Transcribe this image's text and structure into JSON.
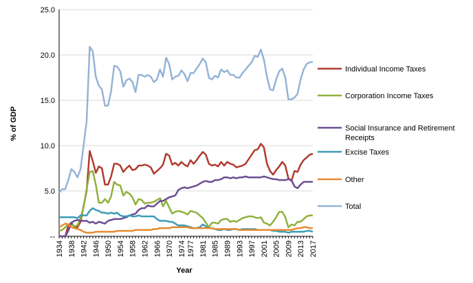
{
  "chart_data": {
    "type": "line",
    "xlabel": "Year",
    "ylabel": "% of GDP",
    "x_tick_labels": [
      "1934",
      "1938",
      "1942",
      "1946",
      "1950",
      "1954",
      "1958",
      "1962",
      "1966",
      "1970",
      "1974",
      "1977",
      "1981",
      "1985",
      "1989",
      "1993",
      "1997",
      "2001",
      "2005",
      "2009",
      "2013",
      "2017"
    ],
    "y_tick_labels": [
      "--",
      "5.0",
      "10.0",
      "15.0",
      "20.0",
      "25.0"
    ],
    "ylim": [
      0,
      25
    ],
    "grid": "horizontal",
    "legend_position": "right",
    "x": [
      1934,
      1935,
      1936,
      1937,
      1938,
      1939,
      1940,
      1941,
      1942,
      1943,
      1944,
      1945,
      1946,
      1947,
      1948,
      1949,
      1950,
      1951,
      1952,
      1953,
      1954,
      1955,
      1956,
      1957,
      1958,
      1959,
      1960,
      1961,
      1962,
      1963,
      1964,
      1965,
      1966,
      1967,
      1968,
      1969,
      1970,
      1971,
      1972,
      1973,
      1974,
      1975,
      1976,
      1977,
      1978,
      1979,
      1980,
      1981,
      1982,
      1983,
      1984,
      1985,
      1986,
      1987,
      1988,
      1989,
      1990,
      1991,
      1992,
      1993,
      1994,
      1995,
      1996,
      1997,
      1998,
      1999,
      2000,
      2001,
      2002,
      2003,
      2004,
      2005,
      2006,
      2007,
      2008,
      2009,
      2010,
      2011,
      2012,
      2013,
      2014,
      2015,
      2016,
      2017
    ],
    "series": [
      {
        "name": "Individual Income Taxes",
        "color": "#b03a2e",
        "values": [
          0.0,
          0.0,
          0.0,
          1.2,
          1.5,
          1.0,
          1.0,
          1.6,
          3.3,
          5.0,
          9.4,
          8.3,
          7.0,
          7.7,
          7.5,
          5.7,
          5.7,
          6.6,
          8.0,
          8.0,
          7.8,
          7.1,
          7.5,
          7.8,
          7.3,
          7.4,
          7.8,
          7.8,
          7.9,
          7.8,
          7.6,
          6.9,
          7.2,
          7.5,
          7.9,
          9.1,
          8.9,
          7.9,
          8.1,
          7.8,
          8.2,
          7.9,
          7.7,
          8.4,
          8.0,
          8.4,
          8.9,
          9.3,
          9.0,
          8.0,
          7.8,
          7.9,
          7.7,
          8.2,
          7.8,
          8.2,
          8.0,
          7.9,
          7.6,
          7.7,
          7.8,
          8.0,
          8.5,
          9.0,
          9.5,
          9.6,
          10.2,
          9.8,
          8.0,
          7.2,
          6.8,
          7.3,
          7.7,
          8.2,
          7.8,
          6.4,
          6.1,
          7.2,
          7.1,
          7.9,
          8.4,
          8.7,
          9.0,
          9.1
        ]
      },
      {
        "name": "Corporation Income Taxes",
        "color": "#8fb03d",
        "values": [
          0.6,
          0.7,
          1.0,
          1.3,
          1.3,
          1.1,
          1.2,
          2.0,
          3.2,
          5.2,
          7.1,
          7.2,
          5.7,
          3.7,
          3.7,
          4.1,
          3.7,
          4.4,
          6.0,
          5.7,
          5.6,
          4.5,
          4.9,
          4.7,
          4.3,
          3.5,
          4.1,
          4.0,
          3.6,
          3.7,
          3.7,
          3.8,
          4.0,
          4.2,
          3.3,
          3.9,
          3.2,
          2.5,
          2.7,
          2.8,
          2.7,
          2.6,
          2.4,
          2.8,
          2.7,
          2.6,
          2.3,
          2.0,
          1.5,
          1.0,
          1.5,
          1.5,
          1.4,
          1.8,
          1.9,
          1.9,
          1.6,
          1.7,
          1.6,
          1.8,
          2.0,
          2.1,
          2.2,
          2.2,
          2.1,
          2.0,
          2.1,
          1.5,
          1.4,
          1.2,
          1.6,
          2.1,
          2.7,
          2.7,
          2.1,
          1.0,
          1.3,
          1.2,
          1.6,
          1.6,
          1.9,
          2.2,
          2.3,
          2.3
        ]
      },
      {
        "name": "Social Insurance and Retirement Receipts",
        "color": "#6a4c93",
        "values": [
          0.0,
          0.0,
          0.0,
          0.6,
          1.5,
          1.7,
          1.8,
          1.7,
          1.7,
          1.7,
          1.5,
          1.6,
          1.4,
          1.6,
          1.5,
          1.4,
          1.7,
          1.8,
          1.9,
          1.9,
          1.9,
          2.0,
          2.1,
          2.3,
          2.4,
          2.5,
          2.9,
          3.1,
          3.1,
          3.4,
          3.3,
          3.3,
          3.6,
          3.9,
          3.9,
          4.1,
          4.3,
          4.4,
          4.5,
          5.1,
          5.3,
          5.4,
          5.3,
          5.4,
          5.5,
          5.6,
          5.8,
          6.0,
          6.1,
          6.0,
          6.0,
          6.2,
          6.2,
          6.3,
          6.5,
          6.5,
          6.4,
          6.5,
          6.4,
          6.5,
          6.5,
          6.6,
          6.5,
          6.5,
          6.5,
          6.5,
          6.5,
          6.6,
          6.5,
          6.4,
          6.3,
          6.3,
          6.2,
          6.2,
          6.2,
          6.3,
          6.2,
          5.5,
          5.3,
          5.7,
          6.0,
          6.0,
          6.0,
          6.0
        ]
      },
      {
        "name": "Excise Taxes",
        "color": "#3a9cb5",
        "values": [
          2.1,
          2.1,
          2.1,
          2.1,
          2.1,
          2.1,
          2.0,
          2.3,
          2.3,
          2.3,
          2.8,
          3.1,
          2.9,
          2.8,
          2.6,
          2.6,
          2.5,
          2.6,
          2.5,
          2.6,
          2.3,
          2.2,
          2.2,
          2.3,
          2.2,
          2.2,
          2.3,
          2.2,
          2.2,
          2.2,
          2.2,
          2.2,
          1.9,
          1.7,
          1.7,
          1.7,
          1.6,
          1.6,
          1.4,
          1.2,
          1.2,
          1.2,
          1.1,
          1.0,
          0.9,
          0.9,
          1.0,
          1.3,
          1.1,
          0.9,
          0.9,
          0.8,
          0.7,
          0.7,
          0.8,
          0.7,
          0.7,
          0.8,
          0.8,
          0.7,
          0.8,
          0.8,
          0.8,
          0.8,
          0.8,
          0.7,
          0.7,
          0.7,
          0.7,
          0.7,
          0.6,
          0.6,
          0.5,
          0.5,
          0.5,
          0.4,
          0.5,
          0.5,
          0.5,
          0.5,
          0.5,
          0.6,
          0.6,
          0.5
        ]
      },
      {
        "name": "Other",
        "color": "#e58a2e",
        "values": [
          1.0,
          1.2,
          1.4,
          1.3,
          1.0,
          0.9,
          0.8,
          0.7,
          0.5,
          0.4,
          0.4,
          0.4,
          0.5,
          0.5,
          0.5,
          0.5,
          0.5,
          0.5,
          0.5,
          0.6,
          0.6,
          0.6,
          0.6,
          0.6,
          0.6,
          0.7,
          0.7,
          0.7,
          0.7,
          0.7,
          0.7,
          0.8,
          0.8,
          0.9,
          0.9,
          0.9,
          0.9,
          1.0,
          1.0,
          1.0,
          1.0,
          1.0,
          1.0,
          0.9,
          0.9,
          0.9,
          0.9,
          0.9,
          0.9,
          0.9,
          0.9,
          0.8,
          0.8,
          0.8,
          0.8,
          0.8,
          0.8,
          0.8,
          0.8,
          0.7,
          0.7,
          0.7,
          0.7,
          0.7,
          0.7,
          0.7,
          0.7,
          0.7,
          0.7,
          0.7,
          0.7,
          0.7,
          0.7,
          0.7,
          0.7,
          0.7,
          0.7,
          0.8,
          0.9,
          0.9,
          1.0,
          1.0,
          0.9,
          0.9
        ]
      },
      {
        "name": "Total",
        "color": "#95b3d7",
        "values": [
          4.8,
          5.2,
          5.2,
          6.2,
          7.4,
          7.1,
          6.5,
          7.4,
          10.0,
          12.7,
          20.9,
          20.4,
          17.6,
          16.6,
          16.2,
          14.4,
          14.4,
          16.0,
          18.8,
          18.7,
          18.2,
          16.5,
          17.2,
          17.4,
          17.0,
          15.9,
          17.8,
          17.8,
          17.6,
          17.8,
          17.6,
          17.0,
          17.3,
          18.4,
          17.6,
          19.7,
          19.0,
          17.3,
          17.6,
          17.7,
          18.3,
          17.9,
          17.1,
          18.0,
          18.0,
          18.5,
          19.0,
          19.6,
          19.2,
          17.5,
          17.3,
          17.7,
          17.5,
          18.4,
          18.1,
          18.3,
          17.8,
          17.8,
          17.5,
          17.5,
          18.0,
          18.4,
          18.8,
          19.2,
          19.9,
          19.8,
          20.6,
          19.5,
          17.6,
          16.2,
          16.1,
          17.3,
          18.2,
          18.5,
          17.5,
          15.1,
          15.1,
          15.3,
          15.7,
          17.3,
          18.4,
          19.0,
          19.2,
          19.2
        ]
      }
    ]
  }
}
